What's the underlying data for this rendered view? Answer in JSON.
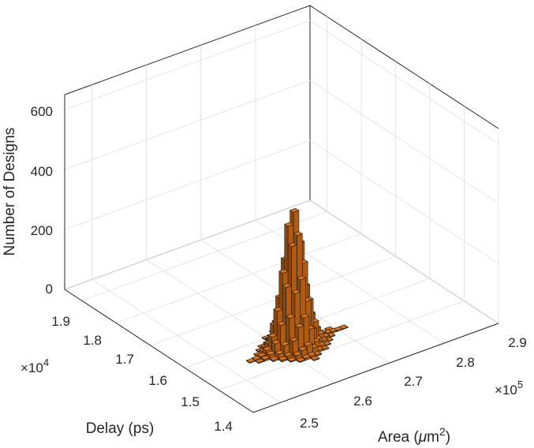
{
  "chart_data": {
    "type": "bar3d",
    "zlabel": "Number of Designs",
    "xlabel_prefix": "Area (",
    "xlabel_mu": "μ",
    "xlabel_unit": "m",
    "xlabel_sup": "2",
    "xlabel_suffix": ")",
    "ylabel": "Delay (ps)",
    "x_multiplier_base": "×10",
    "x_multiplier_exp": "5",
    "y_multiplier_base": "×10",
    "y_multiplier_exp": "4",
    "xlim": [
      2.45,
      2.9
    ],
    "ylim": [
      1.4,
      1.95
    ],
    "zlim": [
      0,
      650
    ],
    "x_ticks": [
      "2.5",
      "2.6",
      "2.7",
      "2.8",
      "2.9"
    ],
    "y_ticks": [
      "1.4",
      "1.5",
      "1.6",
      "1.7",
      "1.8",
      "1.9"
    ],
    "z_ticks": [
      "0",
      "200",
      "400",
      "600"
    ],
    "grid": true,
    "bar_color": "#d9731a",
    "peak": {
      "x": 2.62,
      "y": 1.55,
      "count": 450
    },
    "bins": [
      {
        "x": 2.62,
        "y": 1.55,
        "z": 450
      },
      {
        "x": 2.61,
        "y": 1.55,
        "z": 410
      },
      {
        "x": 2.62,
        "y": 1.54,
        "z": 380
      },
      {
        "x": 2.61,
        "y": 1.54,
        "z": 350
      },
      {
        "x": 2.63,
        "y": 1.55,
        "z": 340
      },
      {
        "x": 2.62,
        "y": 1.56,
        "z": 320
      },
      {
        "x": 2.61,
        "y": 1.56,
        "z": 290
      },
      {
        "x": 2.63,
        "y": 1.54,
        "z": 280
      },
      {
        "x": 2.6,
        "y": 1.55,
        "z": 260
      },
      {
        "x": 2.62,
        "y": 1.53,
        "z": 240
      },
      {
        "x": 2.6,
        "y": 1.54,
        "z": 220
      },
      {
        "x": 2.63,
        "y": 1.56,
        "z": 210
      },
      {
        "x": 2.61,
        "y": 1.53,
        "z": 200
      },
      {
        "x": 2.64,
        "y": 1.55,
        "z": 190
      },
      {
        "x": 2.62,
        "y": 1.57,
        "z": 180
      },
      {
        "x": 2.6,
        "y": 1.56,
        "z": 170
      },
      {
        "x": 2.63,
        "y": 1.53,
        "z": 160
      },
      {
        "x": 2.64,
        "y": 1.54,
        "z": 150
      },
      {
        "x": 2.59,
        "y": 1.55,
        "z": 140
      },
      {
        "x": 2.61,
        "y": 1.57,
        "z": 135
      },
      {
        "x": 2.6,
        "y": 1.53,
        "z": 125
      },
      {
        "x": 2.62,
        "y": 1.52,
        "z": 120
      },
      {
        "x": 2.64,
        "y": 1.56,
        "z": 115
      },
      {
        "x": 2.63,
        "y": 1.57,
        "z": 110
      },
      {
        "x": 2.59,
        "y": 1.54,
        "z": 100
      },
      {
        "x": 2.61,
        "y": 1.52,
        "z": 95
      },
      {
        "x": 2.65,
        "y": 1.55,
        "z": 90
      },
      {
        "x": 2.59,
        "y": 1.56,
        "z": 85
      },
      {
        "x": 2.6,
        "y": 1.57,
        "z": 80
      },
      {
        "x": 2.63,
        "y": 1.52,
        "z": 75
      },
      {
        "x": 2.65,
        "y": 1.54,
        "z": 70
      },
      {
        "x": 2.62,
        "y": 1.58,
        "z": 65
      },
      {
        "x": 2.58,
        "y": 1.55,
        "z": 60
      },
      {
        "x": 2.64,
        "y": 1.53,
        "z": 60
      },
      {
        "x": 2.6,
        "y": 1.52,
        "z": 55
      },
      {
        "x": 2.65,
        "y": 1.56,
        "z": 50
      },
      {
        "x": 2.58,
        "y": 1.54,
        "z": 45
      },
      {
        "x": 2.61,
        "y": 1.58,
        "z": 45
      },
      {
        "x": 2.63,
        "y": 1.58,
        "z": 40
      },
      {
        "x": 2.59,
        "y": 1.53,
        "z": 40
      },
      {
        "x": 2.66,
        "y": 1.55,
        "z": 35
      },
      {
        "x": 2.62,
        "y": 1.51,
        "z": 35
      },
      {
        "x": 2.58,
        "y": 1.56,
        "z": 30
      },
      {
        "x": 2.64,
        "y": 1.57,
        "z": 30
      },
      {
        "x": 2.59,
        "y": 1.57,
        "z": 28
      },
      {
        "x": 2.64,
        "y": 1.52,
        "z": 26
      },
      {
        "x": 2.61,
        "y": 1.51,
        "z": 25
      },
      {
        "x": 2.66,
        "y": 1.54,
        "z": 24
      },
      {
        "x": 2.57,
        "y": 1.55,
        "z": 22
      },
      {
        "x": 2.6,
        "y": 1.58,
        "z": 22
      },
      {
        "x": 2.65,
        "y": 1.53,
        "z": 20
      },
      {
        "x": 2.63,
        "y": 1.51,
        "z": 20
      },
      {
        "x": 2.62,
        "y": 1.59,
        "z": 18
      },
      {
        "x": 2.58,
        "y": 1.53,
        "z": 18
      },
      {
        "x": 2.66,
        "y": 1.56,
        "z": 16
      },
      {
        "x": 2.57,
        "y": 1.54,
        "z": 15
      },
      {
        "x": 2.6,
        "y": 1.51,
        "z": 15
      },
      {
        "x": 2.65,
        "y": 1.57,
        "z": 14
      },
      {
        "x": 2.64,
        "y": 1.58,
        "z": 12
      },
      {
        "x": 2.59,
        "y": 1.52,
        "z": 12
      },
      {
        "x": 2.67,
        "y": 1.55,
        "z": 12
      },
      {
        "x": 2.61,
        "y": 1.59,
        "z": 10
      },
      {
        "x": 2.57,
        "y": 1.56,
        "z": 10
      },
      {
        "x": 2.63,
        "y": 1.59,
        "z": 10
      },
      {
        "x": 2.66,
        "y": 1.53,
        "z": 9
      },
      {
        "x": 2.58,
        "y": 1.57,
        "z": 9
      },
      {
        "x": 2.62,
        "y": 1.5,
        "z": 8
      },
      {
        "x": 2.56,
        "y": 1.55,
        "z": 8
      },
      {
        "x": 2.67,
        "y": 1.54,
        "z": 8
      },
      {
        "x": 2.65,
        "y": 1.52,
        "z": 7
      },
      {
        "x": 2.59,
        "y": 1.58,
        "z": 7
      },
      {
        "x": 2.61,
        "y": 1.5,
        "z": 7
      },
      {
        "x": 2.68,
        "y": 1.55,
        "z": 6
      },
      {
        "x": 2.6,
        "y": 1.59,
        "z": 6
      },
      {
        "x": 2.64,
        "y": 1.51,
        "z": 6
      },
      {
        "x": 2.56,
        "y": 1.54,
        "z": 6
      },
      {
        "x": 2.67,
        "y": 1.56,
        "z": 5
      },
      {
        "x": 2.62,
        "y": 1.6,
        "z": 5
      },
      {
        "x": 2.58,
        "y": 1.52,
        "z": 5
      },
      {
        "x": 2.66,
        "y": 1.57,
        "z": 5
      },
      {
        "x": 2.63,
        "y": 1.5,
        "z": 4
      },
      {
        "x": 2.55,
        "y": 1.55,
        "z": 4
      },
      {
        "x": 2.57,
        "y": 1.53,
        "z": 4
      },
      {
        "x": 2.69,
        "y": 1.55,
        "z": 4
      },
      {
        "x": 2.65,
        "y": 1.58,
        "z": 4
      },
      {
        "x": 2.6,
        "y": 1.5,
        "z": 3
      },
      {
        "x": 2.61,
        "y": 1.6,
        "z": 3
      },
      {
        "x": 2.68,
        "y": 1.54,
        "z": 3
      },
      {
        "x": 2.57,
        "y": 1.57,
        "z": 3
      },
      {
        "x": 2.64,
        "y": 1.59,
        "z": 3
      },
      {
        "x": 2.56,
        "y": 1.56,
        "z": 3
      },
      {
        "x": 2.66,
        "y": 1.52,
        "z": 3
      },
      {
        "x": 2.59,
        "y": 1.51,
        "z": 3
      },
      {
        "x": 2.7,
        "y": 1.55,
        "z": 2
      },
      {
        "x": 2.54,
        "y": 1.55,
        "z": 2
      },
      {
        "x": 2.62,
        "y": 1.49,
        "z": 2
      },
      {
        "x": 2.63,
        "y": 1.6,
        "z": 2
      },
      {
        "x": 2.67,
        "y": 1.53,
        "z": 2
      },
      {
        "x": 2.58,
        "y": 1.58,
        "z": 2
      },
      {
        "x": 2.55,
        "y": 1.54,
        "z": 2
      },
      {
        "x": 2.69,
        "y": 1.56,
        "z": 2
      },
      {
        "x": 2.65,
        "y": 1.51,
        "z": 2
      },
      {
        "x": 2.6,
        "y": 1.6,
        "z": 2
      },
      {
        "x": 2.71,
        "y": 1.55,
        "z": 2
      },
      {
        "x": 2.62,
        "y": 1.61,
        "z": 2
      }
    ]
  }
}
